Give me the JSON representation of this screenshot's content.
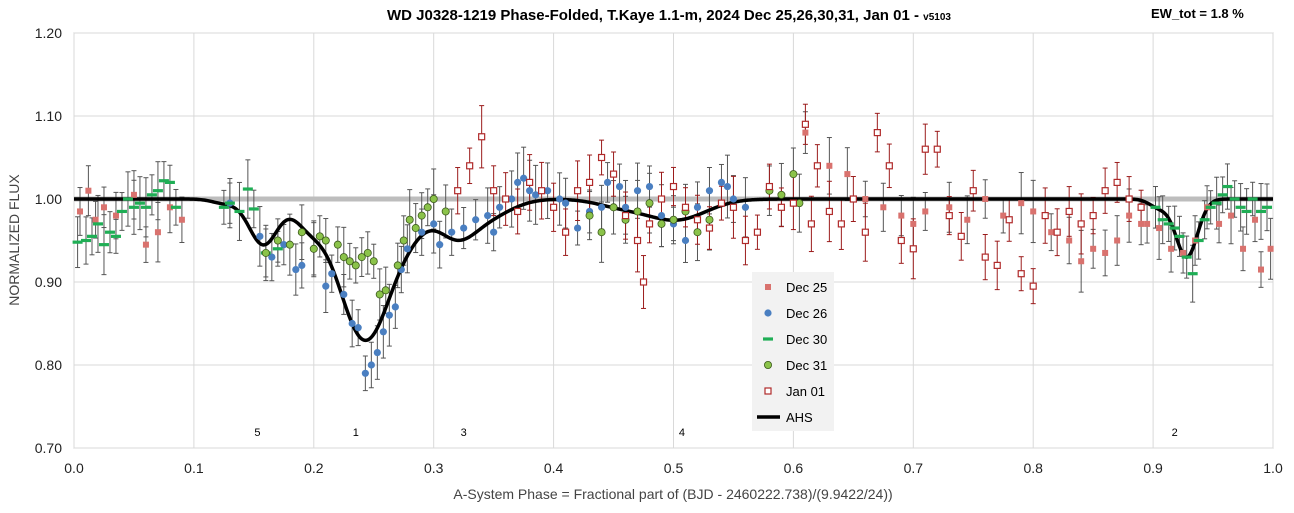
{
  "chart_data": {
    "type": "scatter",
    "title": "WD J0328-1219 Phase-Folded, T.Kaye 1.1-m, 2024 Dec 25,26,30,31, Jan 01 - ",
    "title_version": "v5103",
    "ew_label": "EW_tot = 1.8 %",
    "xlabel": "A-System Phase = Fractional part of (BJD - 2460222.738)/(9.9422/24))",
    "ylabel": "NORMALIZED FLUX",
    "xlim": [
      0.0,
      1.0
    ],
    "ylim": [
      0.7,
      1.2
    ],
    "x_ticks": [
      "0.0",
      "0.1",
      "0.2",
      "0.3",
      "0.4",
      "0.5",
      "0.6",
      "0.7",
      "0.8",
      "0.9",
      "1.0"
    ],
    "y_ticks": [
      "0.70",
      "0.80",
      "0.90",
      "1.00",
      "1.10",
      "1.20"
    ],
    "grid": true,
    "reference_line": 1.0,
    "legend_position": "center-bottom",
    "event_labels": [
      {
        "x": 0.153,
        "text": "5"
      },
      {
        "x": 0.235,
        "text": "1"
      },
      {
        "x": 0.325,
        "text": "3"
      },
      {
        "x": 0.507,
        "text": "4"
      },
      {
        "x": 0.918,
        "text": "2"
      }
    ],
    "model": {
      "name": "AHS",
      "baseline": 1.0,
      "dips": [
        {
          "center": 0.158,
          "depth": 0.055,
          "width": 0.012
        },
        {
          "center": 0.195,
          "depth": 0.025,
          "width": 0.012
        },
        {
          "center": 0.243,
          "depth": 0.17,
          "width": 0.022
        },
        {
          "center": 0.283,
          "depth": 0.02,
          "width": 0.014
        },
        {
          "center": 0.318,
          "depth": 0.04,
          "width": 0.016
        },
        {
          "center": 0.345,
          "depth": 0.02,
          "width": 0.02
        },
        {
          "center": 0.502,
          "depth": 0.025,
          "width": 0.025
        },
        {
          "center": 0.455,
          "depth": 0.008,
          "width": 0.02
        },
        {
          "center": 0.928,
          "depth": 0.07,
          "width": 0.009
        },
        {
          "center": 0.905,
          "depth": 0.01,
          "width": 0.008
        },
        {
          "center": 0.125,
          "depth": 0.005,
          "width": 0.01
        }
      ]
    },
    "series": [
      {
        "name": "Dec 25",
        "marker": "square",
        "color": "#d9726e",
        "points": [
          [
            0.005,
            0.985
          ],
          [
            0.012,
            1.01
          ],
          [
            0.018,
            0.975
          ],
          [
            0.025,
            0.99
          ],
          [
            0.035,
            0.98
          ],
          [
            0.05,
            1.005
          ],
          [
            0.06,
            0.945
          ],
          [
            0.07,
            0.96
          ],
          [
            0.08,
            0.99
          ],
          [
            0.09,
            0.975
          ],
          [
            0.61,
            1.08
          ],
          [
            0.63,
            1.04
          ],
          [
            0.645,
            1.03
          ],
          [
            0.66,
            1.0
          ],
          [
            0.675,
            0.99
          ],
          [
            0.69,
            0.98
          ],
          [
            0.7,
            0.97
          ],
          [
            0.71,
            0.985
          ],
          [
            0.73,
            0.99
          ],
          [
            0.745,
            0.975
          ],
          [
            0.76,
            1.0
          ],
          [
            0.775,
            0.98
          ],
          [
            0.79,
            0.995
          ],
          [
            0.8,
            0.985
          ],
          [
            0.815,
            0.96
          ],
          [
            0.83,
            0.95
          ],
          [
            0.84,
            0.925
          ],
          [
            0.85,
            0.94
          ],
          [
            0.86,
            0.935
          ],
          [
            0.87,
            0.95
          ],
          [
            0.88,
            0.98
          ],
          [
            0.89,
            0.97
          ],
          [
            0.895,
            0.97
          ],
          [
            0.905,
            0.965
          ],
          [
            0.915,
            0.94
          ],
          [
            0.925,
            0.935
          ],
          [
            0.935,
            0.95
          ],
          [
            0.945,
            0.99
          ],
          [
            0.955,
            0.97
          ],
          [
            0.965,
            0.98
          ],
          [
            0.975,
            0.94
          ],
          [
            0.985,
            0.975
          ],
          [
            0.99,
            0.915
          ],
          [
            0.998,
            0.94
          ]
        ]
      },
      {
        "name": "Dec 26",
        "marker": "circle",
        "color": "#4a7fc1",
        "points": [
          [
            0.13,
            0.995
          ],
          [
            0.155,
            0.955
          ],
          [
            0.165,
            0.93
          ],
          [
            0.175,
            0.945
          ],
          [
            0.185,
            0.915
          ],
          [
            0.19,
            0.92
          ],
          [
            0.2,
            0.94
          ],
          [
            0.21,
            0.895
          ],
          [
            0.215,
            0.91
          ],
          [
            0.225,
            0.885
          ],
          [
            0.232,
            0.85
          ],
          [
            0.237,
            0.845
          ],
          [
            0.243,
            0.79
          ],
          [
            0.248,
            0.8
          ],
          [
            0.253,
            0.815
          ],
          [
            0.258,
            0.84
          ],
          [
            0.263,
            0.86
          ],
          [
            0.268,
            0.87
          ],
          [
            0.273,
            0.915
          ],
          [
            0.278,
            0.94
          ],
          [
            0.29,
            0.96
          ],
          [
            0.3,
            0.97
          ],
          [
            0.305,
            0.945
          ],
          [
            0.315,
            0.96
          ],
          [
            0.325,
            0.965
          ],
          [
            0.335,
            0.975
          ],
          [
            0.345,
            0.98
          ],
          [
            0.35,
            0.96
          ],
          [
            0.355,
            0.99
          ],
          [
            0.365,
            1.0
          ],
          [
            0.37,
            1.02
          ],
          [
            0.375,
            1.025
          ],
          [
            0.38,
            1.01
          ],
          [
            0.385,
            1.005
          ],
          [
            0.395,
            1.01
          ],
          [
            0.405,
            1.0
          ],
          [
            0.41,
            0.995
          ],
          [
            0.42,
            0.965
          ],
          [
            0.43,
            0.985
          ],
          [
            0.44,
            0.99
          ],
          [
            0.445,
            1.02
          ],
          [
            0.455,
            1.015
          ],
          [
            0.46,
            0.99
          ],
          [
            0.47,
            1.01
          ],
          [
            0.48,
            1.015
          ],
          [
            0.49,
            0.98
          ],
          [
            0.5,
            0.97
          ],
          [
            0.51,
            0.95
          ],
          [
            0.52,
            0.99
          ],
          [
            0.53,
            1.01
          ],
          [
            0.54,
            1.02
          ],
          [
            0.545,
            1.015
          ],
          [
            0.55,
            1.0
          ],
          [
            0.56,
            0.99
          ]
        ]
      },
      {
        "name": "Dec 30",
        "marker": "dash",
        "color": "#1fae55",
        "points": [
          [
            0.003,
            0.948
          ],
          [
            0.01,
            0.95
          ],
          [
            0.015,
            0.955
          ],
          [
            0.02,
            0.97
          ],
          [
            0.025,
            0.945
          ],
          [
            0.03,
            0.96
          ],
          [
            0.035,
            0.955
          ],
          [
            0.04,
            0.985
          ],
          [
            0.045,
            1.0
          ],
          [
            0.05,
            0.99
          ],
          [
            0.055,
            0.995
          ],
          [
            0.06,
            0.99
          ],
          [
            0.065,
            1.005
          ],
          [
            0.07,
            1.01
          ],
          [
            0.075,
            1.022
          ],
          [
            0.08,
            1.02
          ],
          [
            0.085,
            0.99
          ],
          [
            0.125,
            0.99
          ],
          [
            0.13,
            0.995
          ],
          [
            0.138,
            0.985
          ],
          [
            0.145,
            1.012
          ],
          [
            0.15,
            0.988
          ],
          [
            0.16,
            0.935
          ],
          [
            0.17,
            0.94
          ],
          [
            0.902,
            0.99
          ],
          [
            0.908,
            0.975
          ],
          [
            0.913,
            0.97
          ],
          [
            0.918,
            0.965
          ],
          [
            0.922,
            0.955
          ],
          [
            0.928,
            0.93
          ],
          [
            0.933,
            0.91
          ],
          [
            0.938,
            0.95
          ],
          [
            0.943,
            0.975
          ],
          [
            0.948,
            0.99
          ],
          [
            0.953,
            0.995
          ],
          [
            0.958,
            1.005
          ],
          [
            0.962,
            1.015
          ],
          [
            0.968,
            1.0
          ],
          [
            0.973,
            0.99
          ],
          [
            0.978,
            0.985
          ],
          [
            0.983,
            1.0
          ],
          [
            0.99,
            0.985
          ],
          [
            0.995,
            0.99
          ]
        ]
      },
      {
        "name": "Dec 31",
        "marker": "circle",
        "color": "#8bc34a",
        "points": [
          [
            0.16,
            0.935
          ],
          [
            0.17,
            0.95
          ],
          [
            0.18,
            0.945
          ],
          [
            0.19,
            0.96
          ],
          [
            0.2,
            0.94
          ],
          [
            0.205,
            0.955
          ],
          [
            0.21,
            0.95
          ],
          [
            0.22,
            0.945
          ],
          [
            0.225,
            0.93
          ],
          [
            0.23,
            0.925
          ],
          [
            0.235,
            0.92
          ],
          [
            0.24,
            0.93
          ],
          [
            0.245,
            0.935
          ],
          [
            0.25,
            0.925
          ],
          [
            0.255,
            0.885
          ],
          [
            0.26,
            0.89
          ],
          [
            0.27,
            0.92
          ],
          [
            0.275,
            0.95
          ],
          [
            0.28,
            0.975
          ],
          [
            0.285,
            0.965
          ],
          [
            0.29,
            0.98
          ],
          [
            0.295,
            0.99
          ],
          [
            0.3,
            1.0
          ],
          [
            0.31,
            0.985
          ],
          [
            0.43,
            0.98
          ],
          [
            0.44,
            0.96
          ],
          [
            0.45,
            0.99
          ],
          [
            0.46,
            0.975
          ],
          [
            0.47,
            0.985
          ],
          [
            0.48,
            0.995
          ],
          [
            0.49,
            0.97
          ],
          [
            0.5,
            0.975
          ],
          [
            0.51,
            0.985
          ],
          [
            0.52,
            0.96
          ],
          [
            0.53,
            0.975
          ],
          [
            0.58,
            1.01
          ],
          [
            0.59,
            1.005
          ],
          [
            0.6,
            1.03
          ],
          [
            0.605,
            0.995
          ]
        ]
      },
      {
        "name": "Jan 01",
        "marker": "open-square",
        "color": "#b02a2a",
        "points": [
          [
            0.32,
            1.01
          ],
          [
            0.33,
            1.04
          ],
          [
            0.34,
            1.075
          ],
          [
            0.35,
            1.01
          ],
          [
            0.36,
            1.0
          ],
          [
            0.37,
            0.985
          ],
          [
            0.38,
            1.02
          ],
          [
            0.39,
            1.01
          ],
          [
            0.4,
            0.99
          ],
          [
            0.41,
            0.96
          ],
          [
            0.42,
            1.01
          ],
          [
            0.43,
            1.02
          ],
          [
            0.44,
            1.05
          ],
          [
            0.45,
            1.03
          ],
          [
            0.46,
            0.98
          ],
          [
            0.47,
            0.95
          ],
          [
            0.475,
            0.9
          ],
          [
            0.48,
            0.97
          ],
          [
            0.49,
            1.0
          ],
          [
            0.5,
            1.015
          ],
          [
            0.51,
            0.99
          ],
          [
            0.52,
            0.975
          ],
          [
            0.53,
            0.965
          ],
          [
            0.54,
            0.995
          ],
          [
            0.55,
            0.99
          ],
          [
            0.56,
            0.95
          ],
          [
            0.57,
            0.96
          ],
          [
            0.58,
            1.015
          ],
          [
            0.59,
            0.99
          ],
          [
            0.6,
            0.995
          ],
          [
            0.61,
            1.09
          ],
          [
            0.615,
            0.97
          ],
          [
            0.62,
            1.04
          ],
          [
            0.63,
            0.985
          ],
          [
            0.64,
            0.97
          ],
          [
            0.65,
            1.0
          ],
          [
            0.66,
            0.96
          ],
          [
            0.67,
            1.08
          ],
          [
            0.68,
            1.04
          ],
          [
            0.69,
            0.95
          ],
          [
            0.7,
            0.94
          ],
          [
            0.71,
            1.06
          ],
          [
            0.72,
            1.06
          ],
          [
            0.73,
            0.98
          ],
          [
            0.74,
            0.955
          ],
          [
            0.75,
            1.01
          ],
          [
            0.76,
            0.93
          ],
          [
            0.77,
            0.92
          ],
          [
            0.78,
            0.975
          ],
          [
            0.79,
            0.91
          ],
          [
            0.8,
            0.895
          ],
          [
            0.81,
            0.98
          ],
          [
            0.82,
            0.96
          ],
          [
            0.83,
            0.985
          ],
          [
            0.84,
            0.97
          ],
          [
            0.85,
            0.98
          ],
          [
            0.86,
            1.01
          ],
          [
            0.87,
            1.02
          ],
          [
            0.88,
            1.0
          ],
          [
            0.89,
            0.99
          ]
        ]
      }
    ]
  }
}
